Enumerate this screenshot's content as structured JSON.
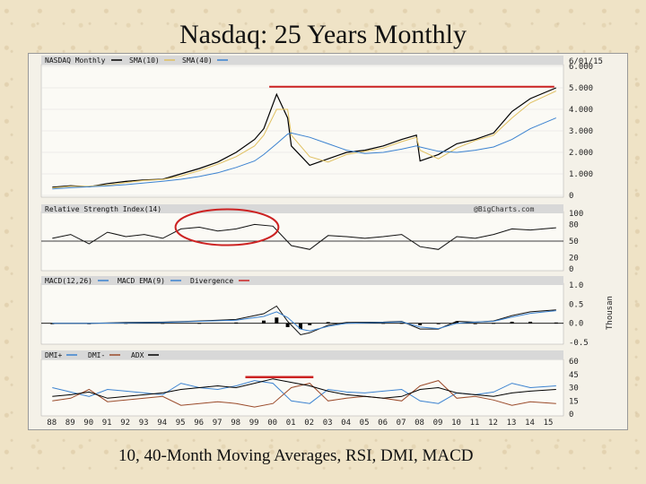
{
  "slide": {
    "title": "Nasdaq: 25 Years Monthly",
    "caption": "10, 40-Month Moving Averages, RSI, DMI, MACD"
  },
  "chart_data": [
    {
      "type": "line",
      "panel": "price",
      "title": "",
      "date_label": "6/01/15",
      "legend": [
        "NASDAQ Monthly",
        "SMA(10)",
        "SMA(40)"
      ],
      "colors": {
        "price": "#000000",
        "sma10": "#e0c060",
        "sma40": "#3b82d0",
        "resistance": "#cc2222"
      },
      "y_unit_label": "Thousands",
      "ylim": [
        0,
        6.0
      ],
      "y_ticks": [
        "0",
        "1.000",
        "2.000",
        "3.000",
        "4.000",
        "5.000",
        "6.000"
      ],
      "x": [
        1988,
        1989,
        1990,
        1991,
        1992,
        1993,
        1994,
        1995,
        1996,
        1997,
        1998,
        1999,
        1999.5,
        2000.2,
        2000.8,
        2001,
        2002,
        2003,
        2004,
        2005,
        2006,
        2007,
        2007.8,
        2008,
        2009,
        2010,
        2011,
        2012,
        2013,
        2014,
        2015.4
      ],
      "series": [
        {
          "name": "NASDAQ Monthly",
          "values": [
            0.38,
            0.45,
            0.4,
            0.55,
            0.65,
            0.72,
            0.75,
            1.0,
            1.25,
            1.55,
            2.0,
            2.6,
            3.1,
            4.7,
            3.6,
            2.3,
            1.4,
            1.7,
            2.0,
            2.1,
            2.3,
            2.6,
            2.8,
            1.6,
            1.9,
            2.4,
            2.6,
            2.9,
            3.9,
            4.5,
            5.0
          ]
        },
        {
          "name": "SMA(10)",
          "values": [
            0.35,
            0.42,
            0.43,
            0.48,
            0.6,
            0.7,
            0.74,
            0.9,
            1.15,
            1.45,
            1.8,
            2.3,
            2.8,
            4.0,
            4.0,
            2.8,
            1.8,
            1.55,
            1.9,
            2.05,
            2.2,
            2.5,
            2.7,
            2.1,
            1.7,
            2.2,
            2.55,
            2.8,
            3.6,
            4.3,
            4.85
          ]
        },
        {
          "name": "SMA(40)",
          "values": [
            0.3,
            0.36,
            0.4,
            0.44,
            0.5,
            0.58,
            0.66,
            0.75,
            0.88,
            1.05,
            1.3,
            1.6,
            1.9,
            2.4,
            2.85,
            2.9,
            2.7,
            2.4,
            2.1,
            1.95,
            2.0,
            2.15,
            2.3,
            2.25,
            2.05,
            2.0,
            2.1,
            2.25,
            2.6,
            3.1,
            3.6
          ]
        },
        {
          "name": "Resistance",
          "values": [
            5.05,
            5.05
          ],
          "x": [
            1999.8,
            2015.3
          ]
        }
      ]
    },
    {
      "type": "line",
      "panel": "rsi",
      "title": "Relative Strength Index(14)",
      "watermark": "@BigCharts.com",
      "ylim": [
        0,
        100
      ],
      "y_ticks": [
        "0",
        "20",
        "50",
        "80",
        "100"
      ],
      "x": [
        1988,
        1989,
        1990,
        1991,
        1992,
        1993,
        1994,
        1995,
        1996,
        1997,
        1998,
        1999,
        2000,
        2001,
        2002,
        2003,
        2004,
        2005,
        2006,
        2007,
        2008,
        2009,
        2010,
        2011,
        2012,
        2013,
        2014,
        2015.4
      ],
      "series": [
        {
          "name": "RSI(14)",
          "values": [
            55,
            62,
            45,
            66,
            58,
            62,
            55,
            72,
            75,
            68,
            72,
            80,
            77,
            42,
            35,
            60,
            58,
            55,
            58,
            62,
            40,
            35,
            58,
            55,
            62,
            72,
            70,
            74
          ]
        }
      ],
      "annotation": "red ellipse 1995-2000 overbought"
    },
    {
      "type": "line",
      "panel": "macd",
      "title": "",
      "legend": [
        "MACD(12,26)",
        "MACD EMA(9)",
        "Divergence"
      ],
      "ylim": [
        -0.5,
        1.0
      ],
      "y_ticks": [
        "-0.5",
        "0.0",
        "0.5",
        "1.0"
      ],
      "x": [
        1988,
        1990,
        1992,
        1994,
        1996,
        1998,
        1999.5,
        2000.2,
        2000.8,
        2001.5,
        2002,
        2003,
        2004,
        2006,
        2007,
        2008,
        2009,
        2010,
        2011,
        2012,
        2013,
        2014,
        2015.4
      ],
      "series": [
        {
          "name": "MACD(12,26)",
          "values": [
            0.0,
            0.0,
            0.02,
            0.03,
            0.06,
            0.1,
            0.25,
            0.45,
            0.05,
            -0.3,
            -0.25,
            -0.05,
            0.02,
            0.03,
            0.05,
            -0.15,
            -0.15,
            0.05,
            0.03,
            0.06,
            0.2,
            0.3,
            0.35
          ]
        },
        {
          "name": "MACD EMA(9)",
          "values": [
            0.0,
            0.0,
            0.01,
            0.02,
            0.05,
            0.08,
            0.18,
            0.3,
            0.15,
            -0.15,
            -0.2,
            -0.08,
            0.0,
            0.02,
            0.04,
            -0.1,
            -0.14,
            0.0,
            0.03,
            0.05,
            0.16,
            0.26,
            0.33
          ]
        }
      ]
    },
    {
      "type": "line",
      "panel": "dmi",
      "title": "",
      "legend": [
        "DMI+",
        "DMI-",
        "ADX"
      ],
      "ylim": [
        0,
        60
      ],
      "y_ticks": [
        "0",
        "15",
        "30",
        "45",
        "60"
      ],
      "x_ticks": [
        "88",
        "89",
        "90",
        "91",
        "92",
        "93",
        "94",
        "95",
        "96",
        "97",
        "98",
        "99",
        "00",
        "01",
        "02",
        "03",
        "04",
        "05",
        "06",
        "07",
        "08",
        "09",
        "10",
        "11",
        "12",
        "13",
        "14",
        "15"
      ],
      "x": [
        1988,
        1989,
        1990,
        1991,
        1992,
        1993,
        1994,
        1995,
        1996,
        1997,
        1998,
        1999,
        2000,
        2001,
        2002,
        2003,
        2004,
        2005,
        2006,
        2007,
        2008,
        2009,
        2010,
        2011,
        2012,
        2013,
        2014,
        2015.4
      ],
      "series": [
        {
          "name": "DMI+",
          "values": [
            30,
            25,
            20,
            28,
            26,
            24,
            22,
            35,
            30,
            28,
            32,
            38,
            35,
            15,
            12,
            28,
            25,
            24,
            26,
            28,
            15,
            12,
            24,
            22,
            25,
            35,
            30,
            32
          ]
        },
        {
          "name": "DMI-",
          "values": [
            15,
            18,
            28,
            14,
            16,
            18,
            20,
            10,
            12,
            14,
            12,
            8,
            12,
            30,
            35,
            15,
            18,
            20,
            18,
            15,
            32,
            38,
            18,
            20,
            16,
            10,
            14,
            12
          ]
        },
        {
          "name": "ADX",
          "values": [
            20,
            22,
            25,
            18,
            20,
            22,
            24,
            28,
            30,
            32,
            30,
            35,
            40,
            36,
            32,
            26,
            22,
            20,
            18,
            20,
            28,
            30,
            24,
            22,
            20,
            24,
            26,
            28
          ]
        }
      ],
      "annotation_level": 42,
      "annotation_x": [
        1998.5,
        2002.2
      ]
    }
  ]
}
